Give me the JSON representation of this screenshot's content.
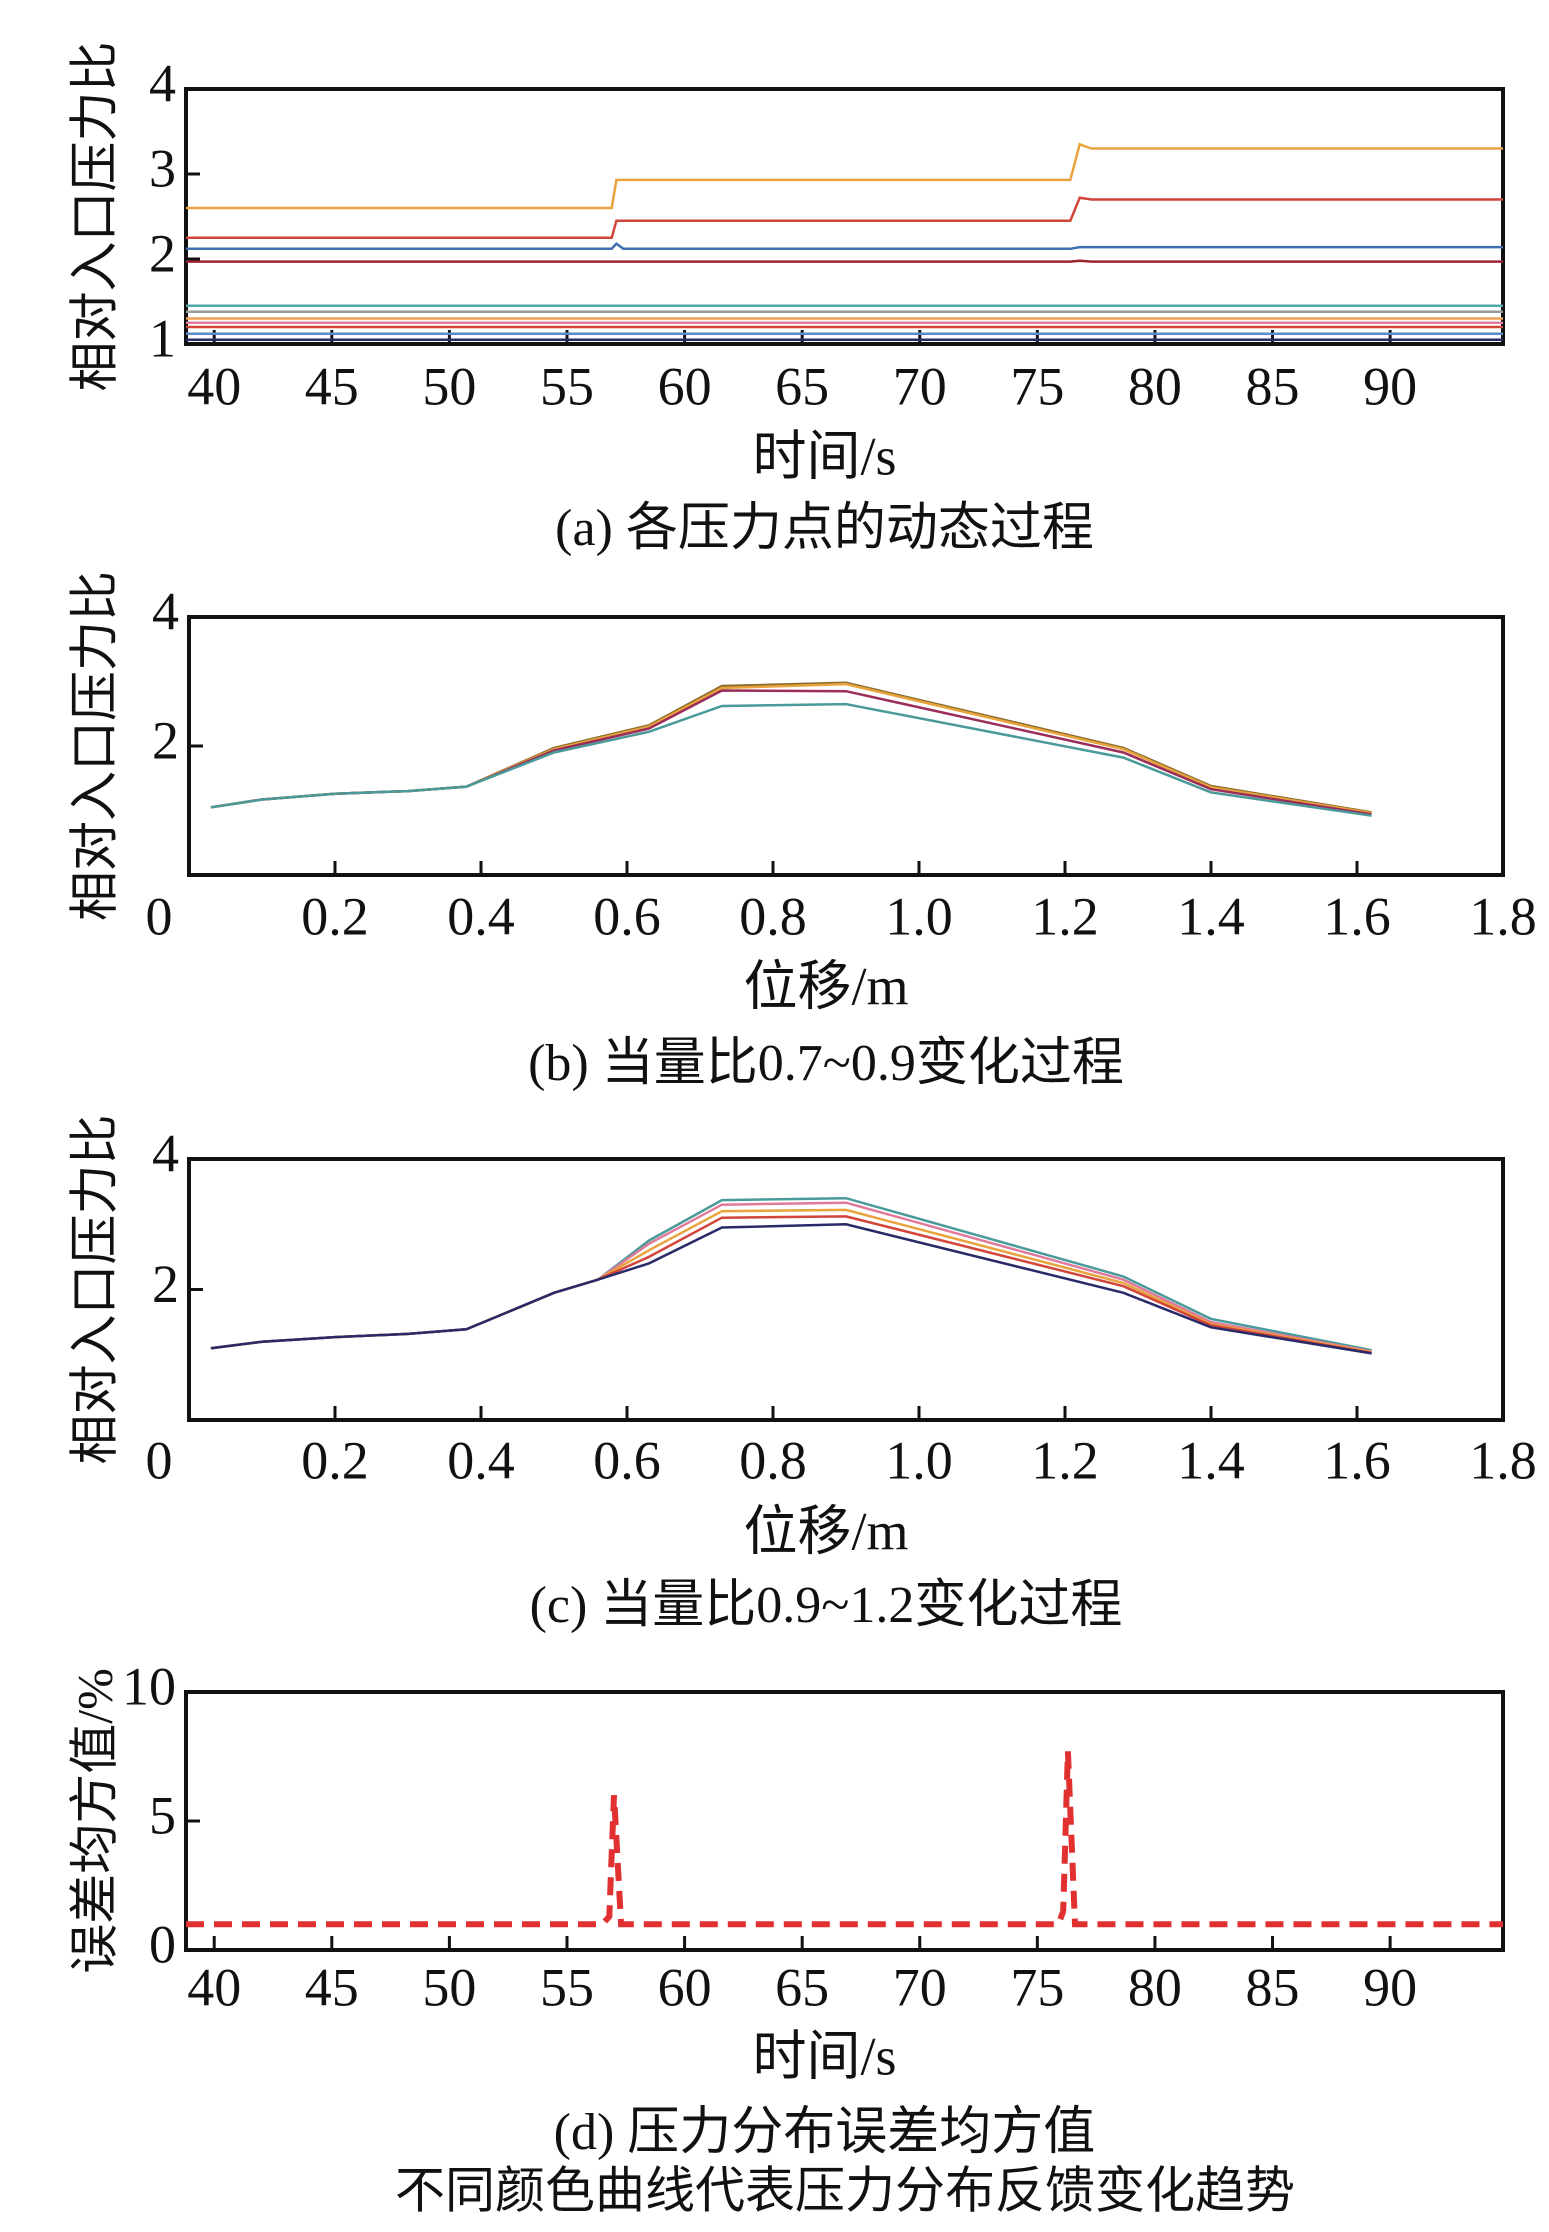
{
  "chart_data": [
    {
      "type": "line",
      "caption": "(a) 各压力点的动态过程",
      "xlabel": "时间/s",
      "ylabel": "相对入口压力比",
      "x": [
        38.8,
        56.9,
        57.1,
        57.4,
        76.4,
        76.8,
        77.3,
        94.8
      ],
      "xlim": [
        38.8,
        94.8
      ],
      "ylim": [
        1,
        4
      ],
      "xticks": [
        40,
        45,
        50,
        55,
        60,
        65,
        70,
        75,
        80,
        85,
        90
      ],
      "yticks": [
        1,
        2,
        3,
        4
      ],
      "series": [
        {
          "color": "#e8a33d",
          "values": [
            2.6,
            2.6,
            2.93,
            2.93,
            2.93,
            3.35,
            3.3,
            3.3
          ]
        },
        {
          "color": "#d2453a",
          "values": [
            2.25,
            2.25,
            2.45,
            2.45,
            2.45,
            2.72,
            2.7,
            2.7
          ]
        },
        {
          "color": "#3f6fb0",
          "values": [
            2.12,
            2.12,
            2.18,
            2.12,
            2.12,
            2.14,
            2.14,
            2.14
          ]
        },
        {
          "color": "#9b2332",
          "values": [
            1.97,
            1.97,
            1.97,
            1.97,
            1.97,
            1.98,
            1.97,
            1.97
          ]
        },
        {
          "color": "#4fa8a8",
          "values": [
            1.45,
            1.45,
            1.45,
            1.45,
            1.45,
            1.45,
            1.45,
            1.45
          ]
        },
        {
          "color": "#9a9a9a",
          "values": [
            1.38,
            1.38,
            1.38,
            1.38,
            1.38,
            1.38,
            1.38,
            1.38
          ]
        },
        {
          "color": "#f0a050",
          "values": [
            1.3,
            1.3,
            1.3,
            1.3,
            1.3,
            1.3,
            1.3,
            1.3
          ]
        },
        {
          "color": "#e07a9a",
          "values": [
            1.25,
            1.25,
            1.25,
            1.25,
            1.25,
            1.25,
            1.25,
            1.25
          ]
        },
        {
          "color": "#d2453a",
          "values": [
            1.2,
            1.2,
            1.2,
            1.2,
            1.2,
            1.2,
            1.2,
            1.2
          ]
        },
        {
          "color": "#5a8ac8",
          "values": [
            1.12,
            1.12,
            1.12,
            1.12,
            1.12,
            1.12,
            1.12,
            1.12
          ]
        },
        {
          "color": "#2a2a6a",
          "values": [
            1.05,
            1.05,
            1.05,
            1.05,
            1.05,
            1.05,
            1.05,
            1.05
          ]
        }
      ]
    },
    {
      "type": "line",
      "caption": "(b) 当量比0.7~0.9变化过程",
      "xlabel": "位移/m",
      "ylabel": "相对入口压力比",
      "x": [
        0.03,
        0.1,
        0.2,
        0.3,
        0.38,
        0.5,
        0.63,
        0.73,
        0.9,
        1.28,
        1.4,
        1.62
      ],
      "xlim": [
        0,
        1.8
      ],
      "ylim": [
        0,
        4
      ],
      "xticks": [
        0,
        0.2,
        0.4,
        0.6,
        0.8,
        {
          "value": 1,
          "label": "1.0"
        },
        1.2,
        1.4,
        1.6,
        1.8
      ],
      "yticks": [
        2,
        4
      ],
      "series": [
        {
          "color": "#8c6d2c",
          "values": [
            1.05,
            1.17,
            1.26,
            1.3,
            1.37,
            1.97,
            2.32,
            2.93,
            2.98,
            1.97,
            1.38,
            0.97
          ]
        },
        {
          "color": "#e8a33d",
          "values": [
            1.05,
            1.17,
            1.26,
            1.3,
            1.37,
            1.95,
            2.3,
            2.9,
            2.96,
            1.95,
            1.36,
            0.96
          ]
        },
        {
          "color": "#9b2d5a",
          "values": [
            1.05,
            1.17,
            1.26,
            1.3,
            1.37,
            1.93,
            2.27,
            2.86,
            2.85,
            1.9,
            1.33,
            0.94
          ]
        },
        {
          "color": "#4a9a9a",
          "values": [
            1.05,
            1.17,
            1.26,
            1.3,
            1.37,
            1.9,
            2.22,
            2.62,
            2.65,
            1.82,
            1.28,
            0.92
          ]
        }
      ]
    },
    {
      "type": "line",
      "caption": "(c) 当量比0.9~1.2变化过程",
      "xlabel": "位移/m",
      "ylabel": "相对入口压力比",
      "x": [
        0.03,
        0.1,
        0.2,
        0.3,
        0.38,
        0.5,
        0.56,
        0.63,
        0.73,
        0.9,
        1.28,
        1.4,
        1.62
      ],
      "xlim": [
        0,
        1.8
      ],
      "ylim": [
        0,
        4
      ],
      "xticks": [
        0,
        0.2,
        0.4,
        0.6,
        0.8,
        {
          "value": 1,
          "label": "1.0"
        },
        1.2,
        1.4,
        1.6,
        1.8
      ],
      "yticks": [
        2,
        4
      ],
      "series": [
        {
          "color": "#4a9a9a",
          "values": [
            1.1,
            1.2,
            1.27,
            1.32,
            1.39,
            1.95,
            2.15,
            2.75,
            3.37,
            3.4,
            2.2,
            1.55,
            1.07
          ]
        },
        {
          "color": "#e07a9a",
          "values": [
            1.1,
            1.2,
            1.27,
            1.32,
            1.39,
            1.95,
            2.15,
            2.7,
            3.3,
            3.33,
            2.15,
            1.5,
            1.05
          ]
        },
        {
          "color": "#e8a33d",
          "values": [
            1.1,
            1.2,
            1.27,
            1.32,
            1.39,
            1.95,
            2.15,
            2.6,
            3.2,
            3.22,
            2.1,
            1.47,
            1.04
          ]
        },
        {
          "color": "#d2453a",
          "values": [
            1.1,
            1.2,
            1.27,
            1.32,
            1.39,
            1.95,
            2.15,
            2.5,
            3.1,
            3.12,
            2.05,
            1.45,
            1.03
          ]
        },
        {
          "color": "#2a2a6a",
          "values": [
            1.1,
            1.2,
            1.27,
            1.32,
            1.39,
            1.95,
            2.15,
            2.4,
            2.95,
            3.0,
            1.95,
            1.42,
            1.02
          ]
        }
      ]
    },
    {
      "type": "line",
      "caption": "(d) 压力分布误差均方值",
      "xlabel": "时间/s",
      "ylabel": "误差均方值/%",
      "dashed": true,
      "x": [
        38.8,
        56.5,
        56.8,
        57.0,
        57.3,
        75.9,
        76.1,
        76.3,
        76.6,
        94.8
      ],
      "xlim": [
        38.8,
        94.8
      ],
      "ylim": [
        0,
        10
      ],
      "xticks": [
        40,
        45,
        50,
        55,
        60,
        65,
        70,
        75,
        80,
        85,
        90
      ],
      "yticks": [
        0,
        5,
        10
      ],
      "series": [
        {
          "color": "#e03030",
          "values": [
            1,
            1,
            1.3,
            6,
            1,
            1,
            1.5,
            7.7,
            1,
            1
          ]
        }
      ]
    }
  ],
  "note": "不同颜色曲线代表压力分布反馈变化趋势"
}
